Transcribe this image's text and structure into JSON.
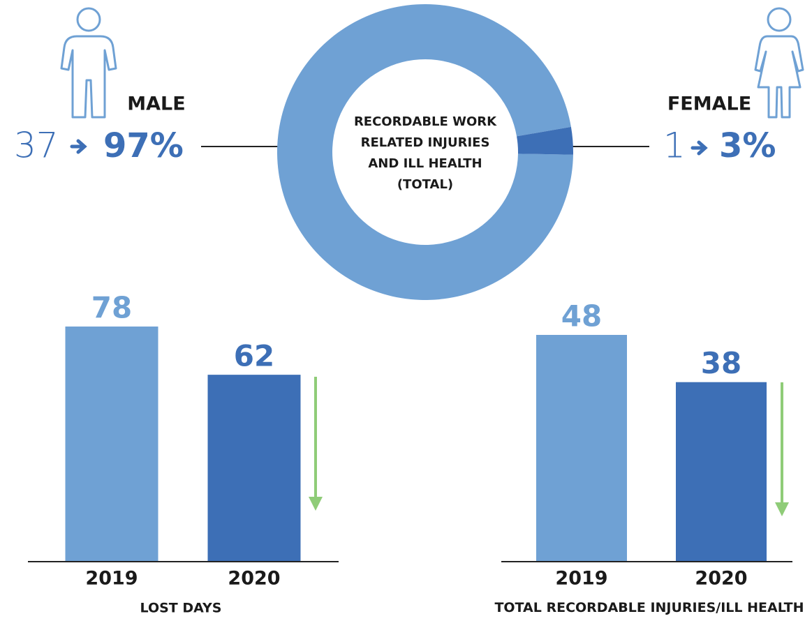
{
  "chart_data": [
    {
      "type": "pie",
      "title": "RECORDABLE WORK RELATED INJURIES AND ILL HEALTH (TOTAL)",
      "categories": [
        "MALE",
        "FEMALE"
      ],
      "counts": [
        37,
        1
      ],
      "values": [
        97,
        3
      ],
      "value_labels": [
        "97%",
        "3%"
      ],
      "colors": [
        "#6fa1d4",
        "#3d6fb6"
      ]
    },
    {
      "type": "bar",
      "xlabel": "LOST DAYS",
      "categories": [
        "2019",
        "2020"
      ],
      "values": [
        78,
        62
      ],
      "colors": [
        "#6fa1d4",
        "#3d6fb6"
      ]
    },
    {
      "type": "bar",
      "xlabel": "TOTAL RECORDABLE INJURIES/ILL HEALTH",
      "categories": [
        "2019",
        "2020"
      ],
      "values": [
        48,
        38
      ],
      "colors": [
        "#6fa1d4",
        "#3d6fb6"
      ]
    }
  ]
}
